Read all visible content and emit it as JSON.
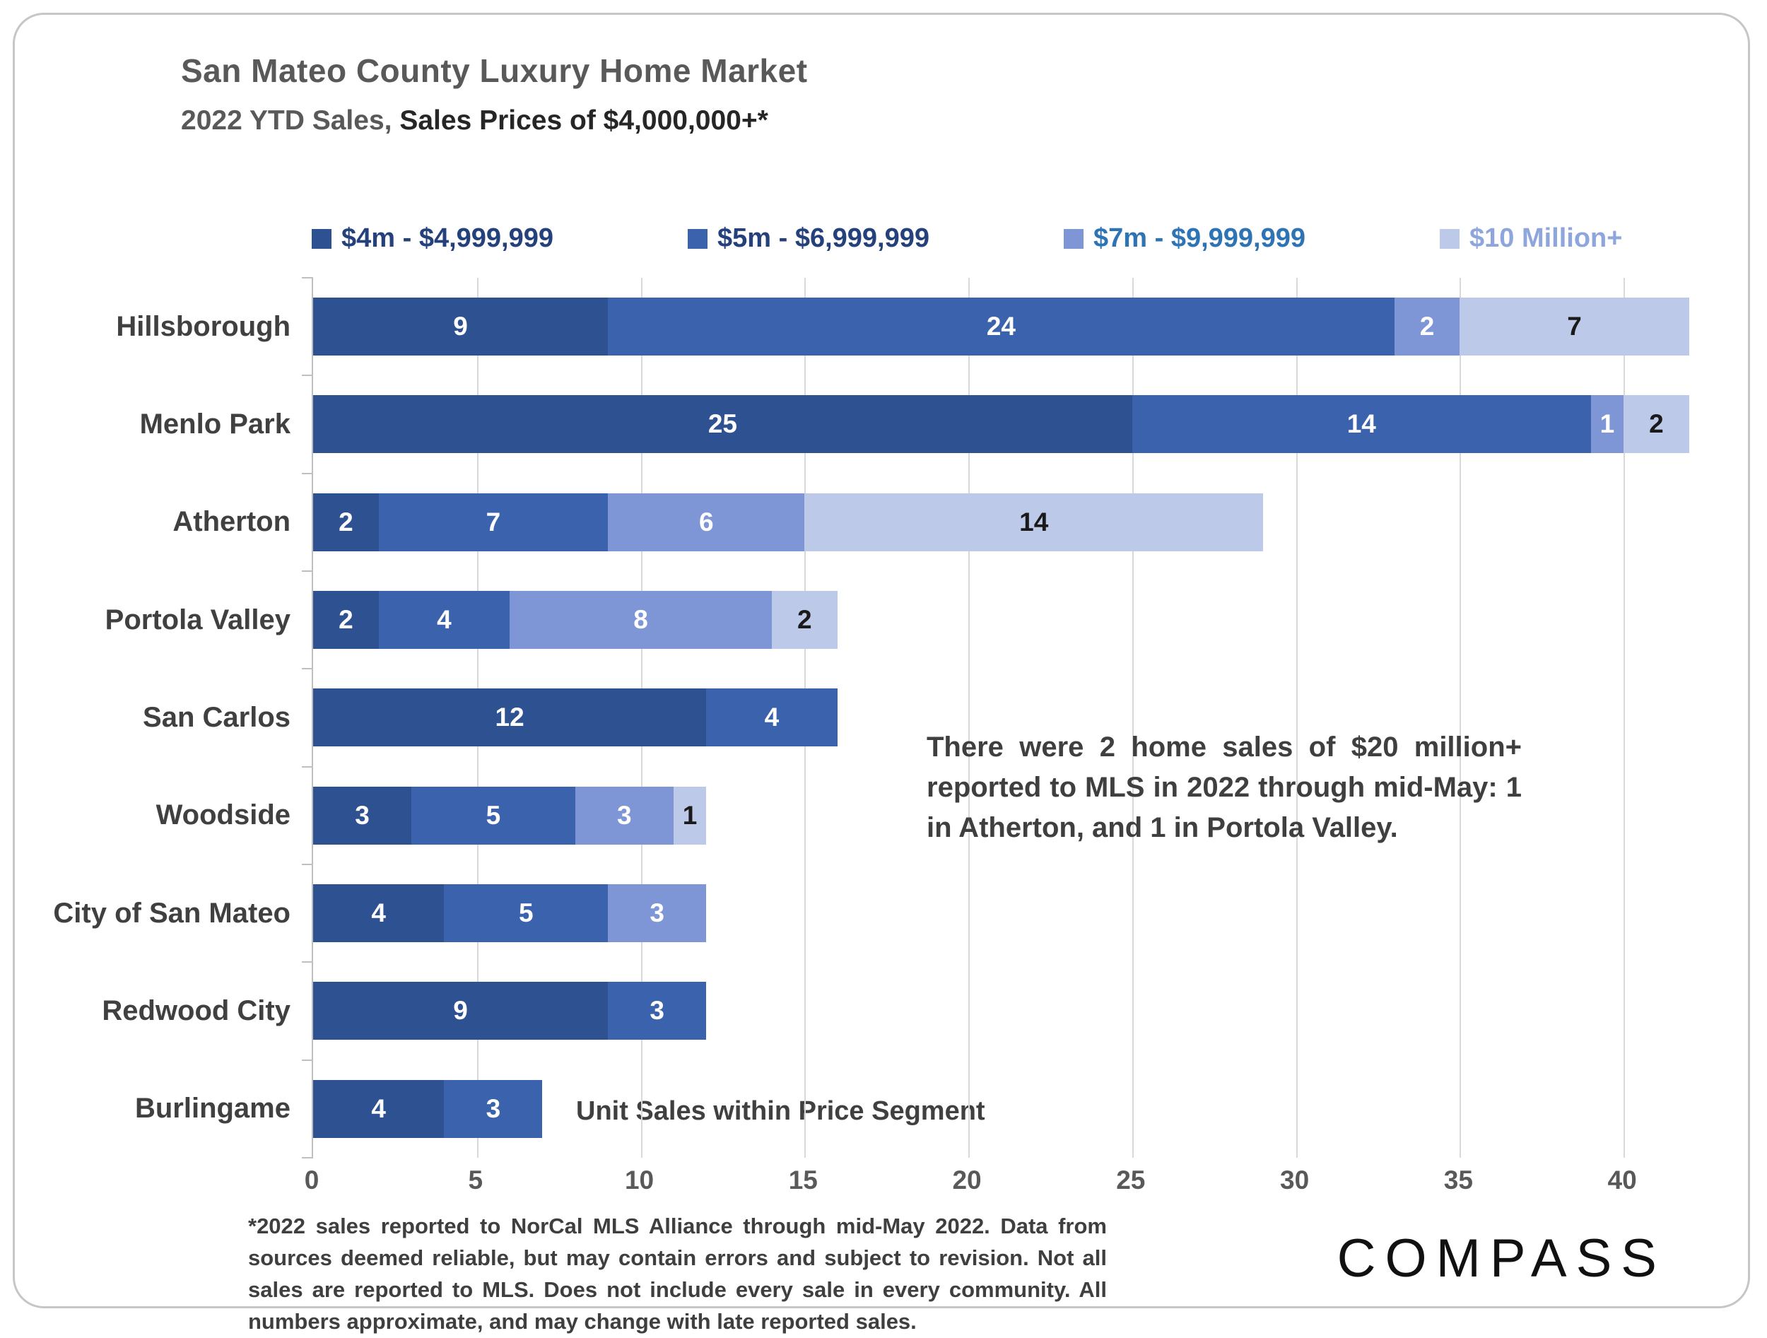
{
  "header": {
    "title": "San Mateo County Luxury Home Market",
    "subtitle_prefix": "2022 YTD Sales, ",
    "subtitle_emphasis": "Sales Prices of $4,000,000+*"
  },
  "chart_data": {
    "type": "bar",
    "orientation": "horizontal",
    "stacked": true,
    "title": "San Mateo County Luxury Home Market",
    "subtitle": "2022 YTD Sales, Sales Prices of $4,000,000+*",
    "categories": [
      "Hillsborough",
      "Menlo Park",
      "Atherton",
      "Portola Valley",
      "San Carlos",
      "Woodside",
      "City of San Mateo",
      "Redwood City",
      "Burlingame"
    ],
    "series": [
      {
        "name": "$4m - $4,999,999",
        "color": "#2E5192",
        "label_color": "#24417C",
        "values": [
          9,
          25,
          2,
          2,
          12,
          3,
          4,
          9,
          4
        ]
      },
      {
        "name": "$5m - $6,999,999",
        "color": "#3A62AD",
        "label_color": "#24417C",
        "values": [
          24,
          14,
          7,
          4,
          4,
          5,
          5,
          3,
          3
        ]
      },
      {
        "name": "$7m - $9,999,999",
        "color": "#7E96D6",
        "label_color": "#2E74B5",
        "values": [
          2,
          1,
          6,
          8,
          0,
          3,
          3,
          0,
          0
        ]
      },
      {
        "name": "$10 Million+",
        "color": "#BDC9E9",
        "label_color": "#8FA6DC",
        "values": [
          7,
          2,
          14,
          2,
          0,
          1,
          0,
          0,
          0
        ]
      }
    ],
    "totals": [
      42,
      42,
      29,
      16,
      16,
      12,
      12,
      12,
      7
    ],
    "xlim": [
      0,
      42.5
    ],
    "xticks": [
      0,
      5,
      10,
      15,
      20,
      25,
      30,
      35,
      40
    ],
    "xlabel": "Unit Sales within Price Segment",
    "annotation": "There were 2 home sales of $20 million+ reported to MLS in 2022 through mid-May: 1 in Atherton, and 1 in Portola Valley.",
    "legend_position": "top",
    "grid": true
  },
  "footnote": {
    "text": "*2022 sales reported to NorCal MLS Alliance through mid-May 2022. Data from sources deemed reliable, but may contain errors and subject to revision. Not all sales are reported to MLS. Does not include every sale in every community. All numbers approximate, and may change with late reported sales."
  },
  "logo": {
    "text": "COMPASS"
  },
  "colors": {
    "card_border": "#C6C6C6",
    "gridline": "#D9D9D9",
    "axis": "#BFBFBF",
    "title_text": "#595959",
    "subtitle_emphasis_text": "#262626",
    "body_text": "#3F3F3F",
    "value_label_light": "#FFFFFF",
    "value_label_dark": "#1A1A1A"
  }
}
